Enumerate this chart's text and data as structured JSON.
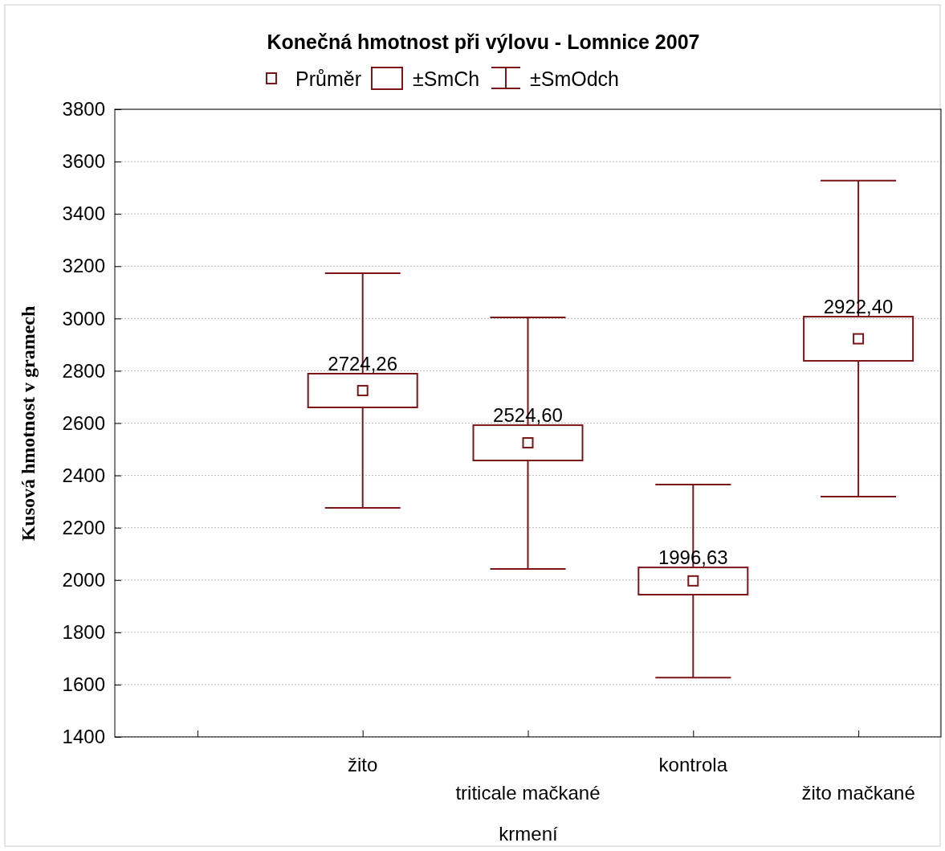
{
  "chart_data": {
    "type": "box",
    "title": "Konečná hmotnost při výlovu - Lomnice 2007",
    "xlabel": "krmení",
    "ylabel": "Kusová hmotnost v gramech",
    "categories": [
      "žito",
      "triticale mačkané",
      "kontrola",
      "žito mačkané"
    ],
    "color": "#7b1518",
    "boxes": [
      {
        "low": 2276,
        "q1": 2660,
        "median": 2724.26,
        "q3": 2789,
        "high": 3173
      },
      {
        "low": 2042,
        "q1": 2457,
        "median": 2524.6,
        "q3": 2592,
        "high": 3004
      },
      {
        "low": 1627,
        "q1": 1944,
        "median": 1996.63,
        "q3": 2048,
        "high": 2365
      },
      {
        "low": 2319,
        "q1": 2838,
        "median": 2922.4,
        "q3": 3007,
        "high": 3527
      }
    ],
    "value_labels": [
      "2724,26",
      "2524,60",
      "1996,63",
      "2922,40"
    ],
    "annotations": [
      "Průměr",
      "±SmCh",
      "±SmOdch"
    ],
    "ylim": [
      1400,
      3800
    ],
    "yticks": [
      1400,
      1600,
      1800,
      2000,
      2200,
      2400,
      2600,
      2800,
      3000,
      3200,
      3400,
      3600,
      3800
    ],
    "grid": "y"
  }
}
